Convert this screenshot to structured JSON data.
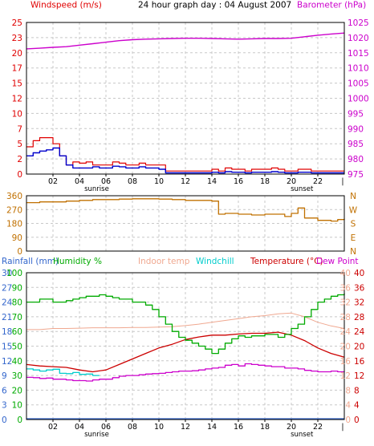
{
  "colors": {
    "windspeed": "#e00000",
    "windavg": "#0000cc",
    "barometer": "#cc00cc",
    "winddir": "#c07000",
    "rainfall": "#3366cc",
    "humidity": "#00aa00",
    "indoor": "#f0a890",
    "windchill": "#00cccc",
    "temperature": "#cc0000",
    "dewpoint": "#cc00cc",
    "grid": "#c8c8c8",
    "axis": "#000000"
  },
  "chart_data": [
    {
      "type": "line",
      "title": "24 hour graph day : 04 August 2007",
      "left_label": "Windspeed (m/s)",
      "right_label": "Barometer (hPa)",
      "x_ticks": [
        "02",
        "04",
        "06",
        "08",
        "10",
        "12",
        "14",
        "16",
        "18",
        "20",
        "22"
      ],
      "x_notes": [
        "sunrise",
        "sunset"
      ],
      "left_ticks": [
        "0",
        "2",
        "5",
        "7",
        "10",
        "12",
        "15",
        "17",
        "20",
        "23",
        "25"
      ],
      "right_ticks": [
        "975",
        "980",
        "985",
        "990",
        "995",
        "1000",
        "1005",
        "1010",
        "1015",
        "1020",
        "1025"
      ],
      "ylim_left": [
        0,
        25
      ],
      "ylim_right": [
        975,
        1025
      ],
      "series": [
        {
          "key": "windspeed",
          "axis": "left",
          "step": true,
          "x": [
            0,
            0.5,
            1,
            1.5,
            2,
            2.5,
            3,
            3.5,
            4,
            4.5,
            5,
            5.5,
            6,
            6.5,
            7,
            7.5,
            8,
            8.5,
            9,
            9.5,
            10,
            10.5,
            11,
            11.5,
            12,
            12.5,
            13,
            13.5,
            14,
            14.5,
            15,
            15.5,
            16,
            16.5,
            17,
            17.5,
            18,
            18.5,
            19,
            19.5,
            20,
            20.5,
            21,
            21.5,
            22,
            22.5,
            23,
            23.5,
            24
          ],
          "values": [
            4.5,
            5.5,
            6,
            6,
            5,
            3,
            1.5,
            2,
            1.8,
            2,
            1.5,
            1.5,
            1.5,
            2,
            1.8,
            1.5,
            1.5,
            1.8,
            1.5,
            1.5,
            1.5,
            0.5,
            0.5,
            0.5,
            0.5,
            0.5,
            0.5,
            0.5,
            0.8,
            0.5,
            1,
            0.8,
            0.8,
            0.5,
            0.8,
            0.8,
            0.8,
            1,
            0.8,
            0.5,
            0.5,
            0.8,
            0.8,
            0.5,
            0.5,
            0.5,
            0.5,
            0.5,
            0.5
          ]
        },
        {
          "key": "windavg",
          "axis": "left",
          "step": true,
          "x": [
            0,
            0.5,
            1,
            1.5,
            2,
            2.5,
            3,
            3.5,
            4,
            4.5,
            5,
            5.5,
            6,
            6.5,
            7,
            7.5,
            8,
            8.5,
            9,
            9.5,
            10,
            10.5,
            11,
            11.5,
            12,
            12.5,
            13,
            13.5,
            14,
            14.5,
            15,
            15.5,
            16,
            16.5,
            17,
            17.5,
            18,
            18.5,
            19,
            19.5,
            20,
            20.5,
            21,
            21.5,
            22,
            22.5,
            23,
            23.5,
            24
          ],
          "values": [
            3,
            3.5,
            3.8,
            4,
            4.3,
            3,
            1.5,
            1,
            1,
            1,
            1.2,
            1,
            1,
            1.3,
            1.2,
            1,
            1,
            1.2,
            1,
            1,
            0.8,
            0.2,
            0.2,
            0.2,
            0.2,
            0.2,
            0.2,
            0.2,
            0.3,
            0.2,
            0.4,
            0.3,
            0.3,
            0.2,
            0.3,
            0.3,
            0.3,
            0.4,
            0.3,
            0.2,
            0.2,
            0.3,
            0.3,
            0.2,
            0.2,
            0.2,
            0.2,
            0.2,
            0.2
          ]
        },
        {
          "key": "barometer",
          "axis": "right",
          "step": false,
          "x": [
            0,
            1,
            2,
            3,
            4,
            5,
            6,
            7,
            8,
            9,
            10,
            11,
            12,
            13,
            14,
            15,
            16,
            17,
            18,
            19,
            20,
            21,
            22,
            23,
            24
          ],
          "values": [
            1016.3,
            1016.5,
            1016.8,
            1017,
            1017.5,
            1018,
            1018.5,
            1019,
            1019.3,
            1019.5,
            1019.6,
            1019.7,
            1019.8,
            1019.8,
            1019.7,
            1019.6,
            1019.5,
            1019.6,
            1019.7,
            1019.7,
            1019.8,
            1020.3,
            1020.8,
            1021.2,
            1021.5
          ]
        }
      ]
    },
    {
      "type": "line",
      "left_ticks": [
        "0",
        "90",
        "180",
        "270",
        "360"
      ],
      "right_ticks": [
        "N",
        "W",
        "S",
        "E",
        "N"
      ],
      "ylim": [
        0,
        360
      ],
      "series": [
        {
          "key": "winddir",
          "axis": "left",
          "step": true,
          "x": [
            0,
            1,
            2,
            3,
            4,
            5,
            6,
            7,
            8,
            9,
            10,
            11,
            12,
            13,
            14,
            14.5,
            15,
            16,
            17,
            18,
            19,
            19.5,
            20,
            20.5,
            21,
            22,
            23,
            23.5,
            24
          ],
          "values": [
            315,
            320,
            320,
            325,
            330,
            335,
            335,
            338,
            340,
            340,
            338,
            335,
            330,
            330,
            325,
            240,
            245,
            240,
            235,
            240,
            240,
            225,
            245,
            280,
            215,
            200,
            195,
            205,
            210
          ]
        }
      ]
    },
    {
      "type": "line",
      "left_labels": [
        "Rainfall (mm)",
        "Humidity %"
      ],
      "center_labels": [
        "Indoor temp",
        "Windchill"
      ],
      "right_labels": [
        "Temperature (°C)",
        "Dew Point"
      ],
      "x_ticks": [
        "02",
        "04",
        "06",
        "08",
        "10",
        "12",
        "14",
        "16",
        "18",
        "20",
        "22"
      ],
      "x_notes": [
        "sunrise",
        "sunset"
      ],
      "rain_ticks": [
        "0",
        "3",
        "6",
        "9",
        "12",
        "15",
        "18",
        "21",
        "24",
        "27",
        "30"
      ],
      "humidity_ticks": [
        "0",
        "10",
        "20",
        "30",
        "40",
        "50",
        "60",
        "70",
        "80",
        "90",
        "100"
      ],
      "temp_ticks_a": [
        "0",
        "4",
        "8",
        "12",
        "16",
        "20",
        "24",
        "28",
        "32",
        "36",
        "40"
      ],
      "temp_ticks_b": [
        "0",
        "4",
        "8",
        "12",
        "16",
        "20",
        "24",
        "28",
        "32",
        "36",
        "40"
      ],
      "ylim_rain": [
        0,
        30
      ],
      "ylim_humidity": [
        0,
        100
      ],
      "ylim_temp": [
        0,
        40
      ],
      "series": [
        {
          "key": "humidity",
          "axis": "humidity",
          "step": true,
          "x": [
            0,
            0.5,
            1,
            1.5,
            2,
            2.5,
            3,
            3.5,
            4,
            4.5,
            5,
            5.5,
            6,
            6.5,
            7,
            7.5,
            8,
            8.5,
            9,
            9.5,
            10,
            10.5,
            11,
            11.5,
            12,
            12.5,
            13,
            13.5,
            14,
            14.5,
            15,
            15.5,
            16,
            16.5,
            17,
            17.5,
            18,
            18.5,
            19,
            19.5,
            20,
            20.5,
            21,
            21.5,
            22,
            22.5,
            23,
            23.5,
            24
          ],
          "values": [
            80,
            80,
            82,
            82,
            80,
            80,
            81,
            82,
            83,
            84,
            84,
            85,
            84,
            83,
            82,
            82,
            80,
            80,
            78,
            75,
            70,
            65,
            60,
            56,
            54,
            52,
            50,
            48,
            45,
            48,
            52,
            55,
            57,
            56,
            57,
            57,
            58,
            58,
            56,
            58,
            62,
            65,
            70,
            75,
            80,
            82,
            84,
            85,
            86
          ]
        },
        {
          "key": "indoor",
          "axis": "temp",
          "step": false,
          "x": [
            0,
            1,
            2,
            3,
            4,
            5,
            6,
            7,
            8,
            9,
            10,
            11,
            12,
            13,
            14,
            15,
            16,
            17,
            18,
            19,
            20,
            21,
            22,
            23,
            24
          ],
          "values": [
            24.5,
            24.5,
            24.8,
            24.8,
            24.9,
            25,
            25,
            25,
            25.1,
            25.1,
            25.2,
            25.3,
            25.6,
            26,
            26.5,
            27,
            27.5,
            28,
            28.3,
            28.8,
            29,
            28,
            26.5,
            25.5,
            24.8
          ]
        },
        {
          "key": "windchill",
          "axis": "temp",
          "step": true,
          "x": [
            0,
            0.5,
            1,
            1.5,
            2,
            2.5,
            3,
            3.5,
            4,
            4.5,
            5,
            5.5
          ],
          "values": [
            13.8,
            13.5,
            13.2,
            13.5,
            13.7,
            12.6,
            12.5,
            12.8,
            12.3,
            12.4,
            12.0,
            12.0
          ]
        },
        {
          "key": "temperature",
          "axis": "temp",
          "step": false,
          "x": [
            0,
            1,
            2,
            3,
            4,
            5,
            6,
            7,
            8,
            9,
            10,
            11,
            12,
            13,
            14,
            15,
            16,
            17,
            18,
            19,
            20,
            21,
            22,
            23,
            24
          ],
          "values": [
            15,
            14.6,
            14.4,
            14.2,
            13.5,
            13,
            13.5,
            15,
            16.5,
            18,
            19.5,
            20.5,
            21.8,
            22.5,
            23,
            23,
            23.3,
            23.5,
            23.5,
            23.8,
            23,
            21.5,
            19.5,
            18,
            17
          ]
        },
        {
          "key": "dewpoint",
          "axis": "temp",
          "step": true,
          "x": [
            0,
            0.5,
            1,
            1.5,
            2,
            2.5,
            3,
            3.5,
            4,
            4.5,
            5,
            5.5,
            6,
            6.5,
            7,
            7.5,
            8,
            8.5,
            9,
            9.5,
            10,
            10.5,
            11,
            11.5,
            12,
            12.5,
            13,
            13.5,
            14,
            14.5,
            15,
            15.5,
            16,
            16.5,
            17,
            17.5,
            18,
            18.5,
            19,
            19.5,
            20,
            20.5,
            21,
            21.5,
            22,
            22.5,
            23,
            23.5,
            24
          ],
          "values": [
            11.5,
            11.4,
            11.2,
            11.3,
            11.0,
            11.0,
            10.8,
            10.6,
            10.6,
            10.5,
            10.8,
            11.0,
            11.0,
            11.4,
            11.8,
            12.0,
            12.0,
            12.2,
            12.4,
            12.5,
            12.6,
            12.8,
            13.0,
            13.2,
            13.2,
            13.3,
            13.5,
            13.8,
            14.0,
            14.2,
            14.8,
            15.0,
            14.6,
            15.2,
            15.0,
            14.8,
            14.6,
            14.4,
            14.4,
            14.0,
            14.0,
            13.8,
            13.4,
            13.2,
            13.0,
            13.0,
            13.2,
            13.0,
            13.1
          ]
        }
      ]
    }
  ]
}
